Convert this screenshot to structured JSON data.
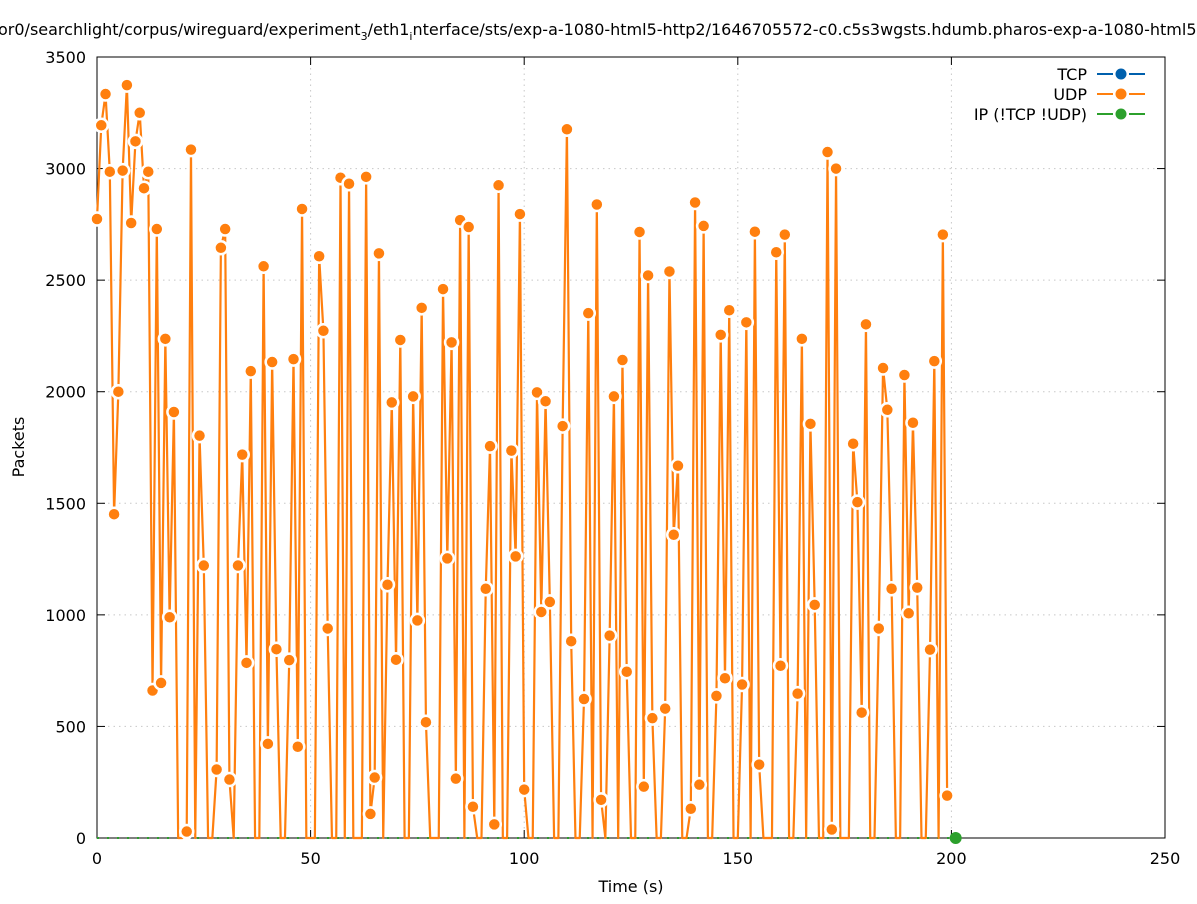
{
  "chart_data": {
    "type": "line",
    "title_parts": [
      {
        "text": "or0/searchlight/corpus/wireguard/experiment",
        "sub": false
      },
      {
        "text": "3",
        "sub": true
      },
      {
        "text": "/eth1",
        "sub": false
      },
      {
        "text": "i",
        "sub": true
      },
      {
        "text": "nterface/sts/exp-a-1080-html5-http2/1646705572-c0.c5s3wgsts.hdumb.pharos-exp-a-1080-html5",
        "sub": false
      }
    ],
    "xlabel": "Time (s)",
    "ylabel": "Packets",
    "xlim": [
      0,
      250
    ],
    "ylim": [
      0,
      3500
    ],
    "xticks": [
      "0",
      "50",
      "100",
      "150",
      "200",
      "250"
    ],
    "xtick_values": [
      0,
      50,
      100,
      150,
      200,
      250
    ],
    "yticks": [
      "0",
      "500",
      "1000",
      "1500",
      "2000",
      "2500",
      "3000",
      "3500"
    ],
    "ytick_values": [
      0,
      500,
      1000,
      1500,
      2000,
      2500,
      3000,
      3500
    ],
    "grid": true,
    "legend_position": "top-right",
    "series": [
      {
        "name": "TCP",
        "color": "#0060ad",
        "values": []
      },
      {
        "name": "UDP",
        "color": "#ff7f0e",
        "x_start": 0,
        "x_step": 1,
        "values": [
          2774,
          3194,
          3334,
          2986,
          1451,
          2000,
          2991,
          3374,
          2756,
          3122,
          3250,
          2912,
          2986,
          661,
          2729,
          695,
          2237,
          989,
          1909,
          0,
          0,
          29,
          3085,
          0,
          1803,
          1221,
          0,
          0,
          307,
          2645,
          2729,
          262,
          0,
          1221,
          1718,
          785,
          2092,
          0,
          0,
          2562,
          422,
          2133,
          846,
          0,
          0,
          797,
          2146,
          409,
          2819,
          0,
          0,
          0,
          2607,
          2273,
          939,
          0,
          0,
          2959,
          0,
          2932,
          0,
          0,
          0,
          2963,
          108,
          271,
          2620,
          0,
          1135,
          1952,
          799,
          2232,
          0,
          0,
          1979,
          975,
          2376,
          519,
          0,
          0,
          0,
          2460,
          1253,
          2221,
          266,
          2769,
          0,
          2738,
          140,
          0,
          0,
          1117,
          1756,
          61,
          2925,
          0,
          0,
          1736,
          1262,
          2796,
          217,
          0,
          0,
          1997,
          1013,
          1957,
          1058,
          0,
          0,
          1846,
          3176,
          882,
          0,
          0,
          623,
          2352,
          0,
          2839,
          171,
          0,
          907,
          1979,
          0,
          2142,
          745,
          0,
          0,
          2716,
          230,
          2521,
          537,
          0,
          0,
          580,
          2539,
          1359,
          1668,
          0,
          0,
          131,
          2848,
          239,
          2743,
          0,
          0,
          637,
          2255,
          716,
          2365,
          0,
          0,
          688,
          2311,
          0,
          2717,
          329,
          0,
          0,
          0,
          2625,
          772,
          2704,
          0,
          0,
          647,
          2237,
          0,
          1856,
          1045,
          0,
          0,
          3074,
          38,
          3000,
          0,
          0,
          0,
          1767,
          1505,
          562,
          2302,
          0,
          0,
          939,
          2106,
          1919,
          1117,
          0,
          0,
          2075,
          1007,
          1861,
          1122,
          0,
          0,
          844,
          2137,
          0,
          2704,
          190
        ]
      },
      {
        "name": "IP (!TCP  !UDP)",
        "color": "#2ca02c",
        "x": [
          201
        ],
        "values": [
          0
        ],
        "baseline_to": 201
      }
    ]
  }
}
